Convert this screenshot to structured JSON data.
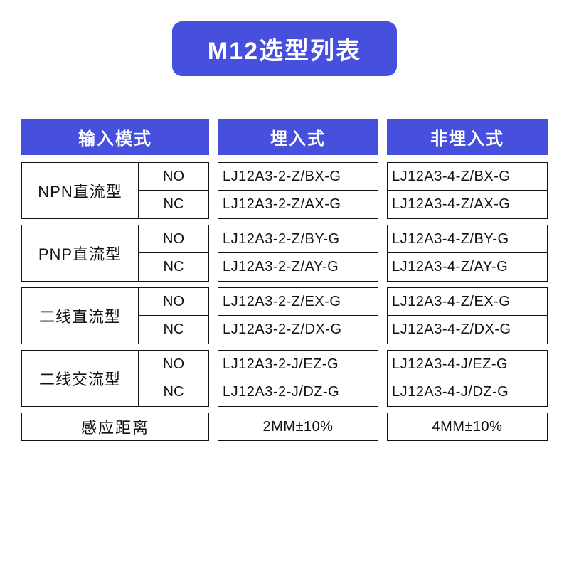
{
  "title": "M12选型列表",
  "headers": {
    "mode": "输入模式",
    "flush": "埋入式",
    "nonflush": "非埋入式"
  },
  "contacts": {
    "no": "NO",
    "nc": "NC"
  },
  "types": [
    {
      "label": "NPN直流型",
      "no": {
        "flush": "LJ12A3-2-Z/BX-G",
        "nonflush": "LJ12A3-4-Z/BX-G"
      },
      "nc": {
        "flush": "LJ12A3-2-Z/AX-G",
        "nonflush": "LJ12A3-4-Z/AX-G"
      }
    },
    {
      "label": "PNP直流型",
      "no": {
        "flush": "LJ12A3-2-Z/BY-G",
        "nonflush": "LJ12A3-4-Z/BY-G"
      },
      "nc": {
        "flush": "LJ12A3-2-Z/AY-G",
        "nonflush": "LJ12A3-4-Z/AY-G"
      }
    },
    {
      "label": "二线直流型",
      "no": {
        "flush": "LJ12A3-2-Z/EX-G",
        "nonflush": "LJ12A3-4-Z/EX-G"
      },
      "nc": {
        "flush": "LJ12A3-2-Z/DX-G",
        "nonflush": "LJ12A3-4-Z/DX-G"
      }
    },
    {
      "label": "二线交流型",
      "no": {
        "flush": "LJ12A3-2-J/EZ-G",
        "nonflush": "LJ12A3-4-J/EZ-G"
      },
      "nc": {
        "flush": "LJ12A3-2-J/DZ-G",
        "nonflush": "LJ12A3-4-J/DZ-G"
      }
    }
  ],
  "sensing": {
    "label": "感应距离",
    "flush": "2MM±10%",
    "nonflush": "4MM±10%"
  },
  "colors": {
    "accent": "#4750dc",
    "text": "#111111",
    "background": "#ffffff"
  }
}
